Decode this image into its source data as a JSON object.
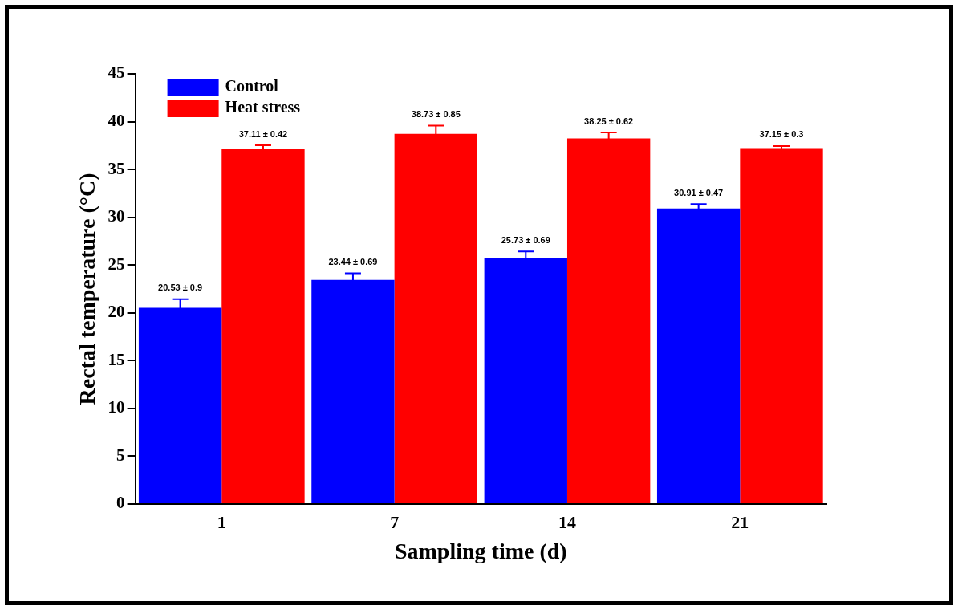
{
  "chart_data": {
    "type": "bar",
    "xlabel": "Sampling time (d)",
    "ylabel": "Rectal temperature (°C)",
    "categories": [
      "1",
      "7",
      "14",
      "21"
    ],
    "series": [
      {
        "name": "Control",
        "color": "#0000ff",
        "values": [
          20.53,
          23.44,
          25.73,
          30.91
        ],
        "errors": [
          0.9,
          0.69,
          0.69,
          0.47
        ],
        "value_labels": [
          "20.53 ± 0.9",
          "23.44 ± 0.69",
          "25.73 ± 0.69",
          "30.91 ± 0.47"
        ]
      },
      {
        "name": "Heat stress",
        "color": "#ff0000",
        "values": [
          37.11,
          38.73,
          38.25,
          37.15
        ],
        "errors": [
          0.42,
          0.85,
          0.62,
          0.3
        ],
        "value_labels": [
          "37.11 ± 0.42",
          "38.73 ± 0.85",
          "38.25 ± 0.62",
          "37.15 ± 0.3"
        ]
      }
    ],
    "ylim": [
      0,
      45
    ],
    "yticks": [
      0,
      5,
      10,
      15,
      20,
      25,
      30,
      35,
      40,
      45
    ],
    "grid": false,
    "legend": "top left"
  }
}
